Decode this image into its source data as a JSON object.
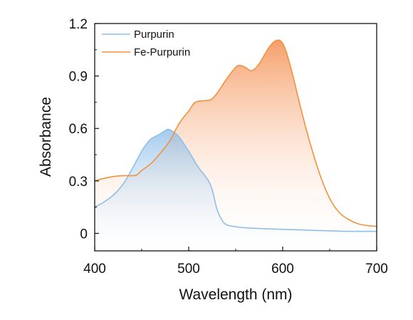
{
  "chart_data": {
    "type": "area",
    "xlabel": "Wavelength (nm)",
    "ylabel": "Absorbance",
    "xlim": [
      400,
      700
    ],
    "ylim": [
      -0.1,
      1.2
    ],
    "x_ticks": [
      400,
      500,
      600,
      700
    ],
    "x_tick_labels": [
      "400",
      "500",
      "600",
      "700"
    ],
    "y_ticks": [
      0,
      0.3,
      0.6,
      0.9,
      1.2
    ],
    "y_tick_labels": [
      "0",
      "0.3",
      "0.6",
      "0.9",
      "1.2"
    ],
    "grid": false,
    "legend_position": "top-left",
    "series": [
      {
        "name": "Purpurin",
        "color": "#8fbfe8",
        "fill_top": "#7fb6e6",
        "fill_bottom": "#ffffff",
        "points": [
          [
            400,
            0.15
          ],
          [
            410,
            0.18
          ],
          [
            420,
            0.22
          ],
          [
            430,
            0.28
          ],
          [
            440,
            0.37
          ],
          [
            450,
            0.47
          ],
          [
            455,
            0.51
          ],
          [
            460,
            0.54
          ],
          [
            470,
            0.57
          ],
          [
            478,
            0.595
          ],
          [
            485,
            0.575
          ],
          [
            490,
            0.55
          ],
          [
            500,
            0.47
          ],
          [
            510,
            0.38
          ],
          [
            520,
            0.31
          ],
          [
            525,
            0.25
          ],
          [
            530,
            0.14
          ],
          [
            535,
            0.08
          ],
          [
            540,
            0.05
          ],
          [
            550,
            0.038
          ],
          [
            560,
            0.032
          ],
          [
            580,
            0.027
          ],
          [
            600,
            0.023
          ],
          [
            620,
            0.02
          ],
          [
            640,
            0.016
          ],
          [
            660,
            0.013
          ],
          [
            680,
            0.012
          ],
          [
            700,
            0.012
          ]
        ]
      },
      {
        "name": "Fe-Purpurin",
        "color": "#f0923e",
        "fill_top": "#f5955a",
        "fill_bottom": "#ffffff",
        "points": [
          [
            400,
            0.3
          ],
          [
            410,
            0.315
          ],
          [
            420,
            0.325
          ],
          [
            430,
            0.33
          ],
          [
            440,
            0.33
          ],
          [
            445,
            0.335
          ],
          [
            450,
            0.36
          ],
          [
            460,
            0.4
          ],
          [
            470,
            0.46
          ],
          [
            480,
            0.53
          ],
          [
            490,
            0.63
          ],
          [
            500,
            0.7
          ],
          [
            505,
            0.74
          ],
          [
            510,
            0.755
          ],
          [
            520,
            0.76
          ],
          [
            525,
            0.77
          ],
          [
            530,
            0.8
          ],
          [
            540,
            0.88
          ],
          [
            550,
            0.95
          ],
          [
            555,
            0.96
          ],
          [
            560,
            0.95
          ],
          [
            567,
            0.93
          ],
          [
            575,
            0.97
          ],
          [
            585,
            1.06
          ],
          [
            592,
            1.1
          ],
          [
            598,
            1.1
          ],
          [
            603,
            1.05
          ],
          [
            610,
            0.92
          ],
          [
            620,
            0.7
          ],
          [
            630,
            0.5
          ],
          [
            640,
            0.33
          ],
          [
            650,
            0.2
          ],
          [
            660,
            0.12
          ],
          [
            670,
            0.08
          ],
          [
            680,
            0.055
          ],
          [
            690,
            0.045
          ],
          [
            700,
            0.04
          ]
        ]
      }
    ]
  }
}
